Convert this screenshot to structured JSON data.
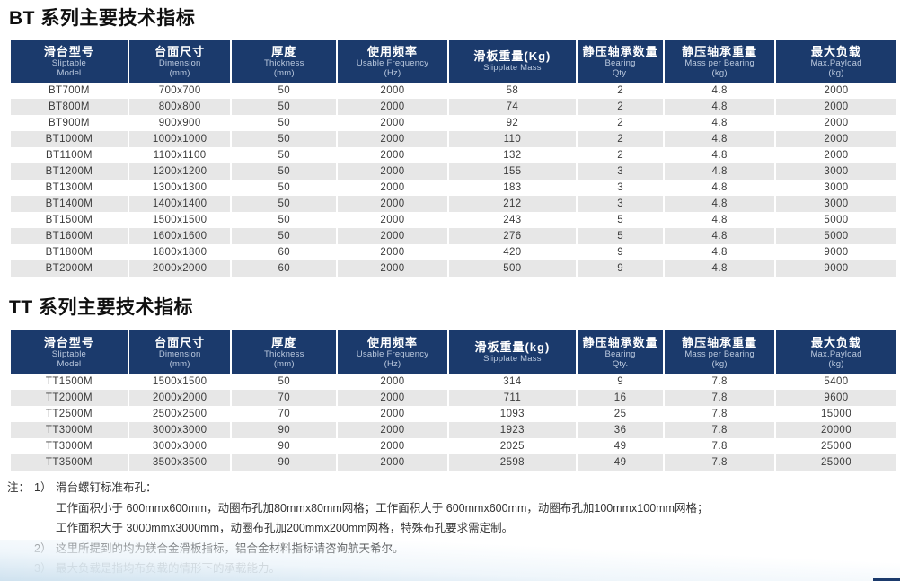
{
  "colors": {
    "header_bg": "#1b3a6c",
    "header_text": "#ffffff",
    "header_subtext": "#bccadf",
    "row_alt": "#e7e7e7",
    "body_text": "#3c3c3c",
    "accent_bar": "#1b3a6c",
    "footer_tint": "#cfe2ef"
  },
  "sections": [
    {
      "title": "BT 系列主要技术指标",
      "table": {
        "columns": [
          {
            "zh": "滑台型号",
            "en": [
              "Sliptable",
              "Model"
            ]
          },
          {
            "zh": "台面尺寸",
            "en": [
              "Dimension",
              "(mm)"
            ]
          },
          {
            "zh": "厚度",
            "en": [
              "Thickness",
              "(mm)"
            ]
          },
          {
            "zh": "使用频率",
            "en": [
              "Usable Frequency",
              "(Hz)"
            ]
          },
          {
            "zh": "滑板重量(Kg)",
            "en": [
              "Slipplate Mass"
            ]
          },
          {
            "zh": "静压轴承数量",
            "en": [
              "Bearing",
              "Qty."
            ]
          },
          {
            "zh": "静压轴承重量",
            "en": [
              "Mass per Bearing",
              "(kg)"
            ]
          },
          {
            "zh": "最大负载",
            "en": [
              "Max.Payload",
              "(kg)"
            ]
          }
        ],
        "rows": [
          [
            "BT700M",
            "700x700",
            "50",
            "2000",
            "58",
            "2",
            "4.8",
            "2000"
          ],
          [
            "BT800M",
            "800x800",
            "50",
            "2000",
            "74",
            "2",
            "4.8",
            "2000"
          ],
          [
            "BT900M",
            "900x900",
            "50",
            "2000",
            "92",
            "2",
            "4.8",
            "2000"
          ],
          [
            "BT1000M",
            "1000x1000",
            "50",
            "2000",
            "110",
            "2",
            "4.8",
            "2000"
          ],
          [
            "BT1100M",
            "1100x1100",
            "50",
            "2000",
            "132",
            "2",
            "4.8",
            "2000"
          ],
          [
            "BT1200M",
            "1200x1200",
            "50",
            "2000",
            "155",
            "3",
            "4.8",
            "3000"
          ],
          [
            "BT1300M",
            "1300x1300",
            "50",
            "2000",
            "183",
            "3",
            "4.8",
            "3000"
          ],
          [
            "BT1400M",
            "1400x1400",
            "50",
            "2000",
            "212",
            "3",
            "4.8",
            "3000"
          ],
          [
            "BT1500M",
            "1500x1500",
            "50",
            "2000",
            "243",
            "5",
            "4.8",
            "5000"
          ],
          [
            "BT1600M",
            "1600x1600",
            "50",
            "2000",
            "276",
            "5",
            "4.8",
            "5000"
          ],
          [
            "BT1800M",
            "1800x1800",
            "60",
            "2000",
            "420",
            "9",
            "4.8",
            "9000"
          ],
          [
            "BT2000M",
            "2000x2000",
            "60",
            "2000",
            "500",
            "9",
            "4.8",
            "9000"
          ]
        ]
      }
    },
    {
      "title": "TT 系列主要技术指标",
      "table": {
        "columns": [
          {
            "zh": "滑台型号",
            "en": [
              "Sliptable",
              "Model"
            ]
          },
          {
            "zh": "台面尺寸",
            "en": [
              "Dimension",
              "(mm)"
            ]
          },
          {
            "zh": "厚度",
            "en": [
              "Thickness",
              "(mm)"
            ]
          },
          {
            "zh": "使用频率",
            "en": [
              "Usable Frequency",
              "(Hz)"
            ]
          },
          {
            "zh": "滑板重量(kg)",
            "en": [
              "Slipplate Mass"
            ]
          },
          {
            "zh": "静压轴承数量",
            "en": [
              "Bearing",
              "Qty."
            ]
          },
          {
            "zh": "静压轴承重量",
            "en": [
              "Mass per Bearing",
              "(kg)"
            ]
          },
          {
            "zh": "最大负载",
            "en": [
              "Max.Payload",
              "(kg)"
            ]
          }
        ],
        "rows": [
          [
            "TT1500M",
            "1500x1500",
            "50",
            "2000",
            "314",
            "9",
            "7.8",
            "5400"
          ],
          [
            "TT2000M",
            "2000x2000",
            "70",
            "2000",
            "711",
            "16",
            "7.8",
            "9600"
          ],
          [
            "TT2500M",
            "2500x2500",
            "70",
            "2000",
            "1093",
            "25",
            "7.8",
            "15000"
          ],
          [
            "TT3000M",
            "3000x3000",
            "90",
            "2000",
            "1923",
            "36",
            "7.8",
            "20000"
          ],
          [
            "TT3000M",
            "3000x3000",
            "90",
            "2000",
            "2025",
            "49",
            "7.8",
            "25000"
          ],
          [
            "TT3500M",
            "3500x3500",
            "90",
            "2000",
            "2598",
            "49",
            "7.8",
            "25000"
          ]
        ]
      }
    }
  ],
  "notes": {
    "lines": [
      {
        "prefix": "注：",
        "num": "1）",
        "text": "滑台螺钉标准布孔："
      },
      {
        "prefix": "",
        "num": "",
        "text": "工作面积小于 600mmx600mm，动圈布孔加80mmx80mm网格；工作面积大于 600mmx600mm，动圈布孔加100mmx100mm网格；"
      },
      {
        "prefix": "",
        "num": "",
        "text": "工作面积大于 3000mmx3000mm，动圈布孔加200mmx200mm网格，特殊布孔要求需定制。"
      },
      {
        "prefix": "",
        "num": "2）",
        "text": "这里所提到的均为镁合金滑板指标，铝合金材料指标请咨询航天希尔。"
      },
      {
        "prefix": "",
        "num": "3）",
        "text": "最大负载是指均布负载的情形下的承载能力。"
      }
    ]
  }
}
